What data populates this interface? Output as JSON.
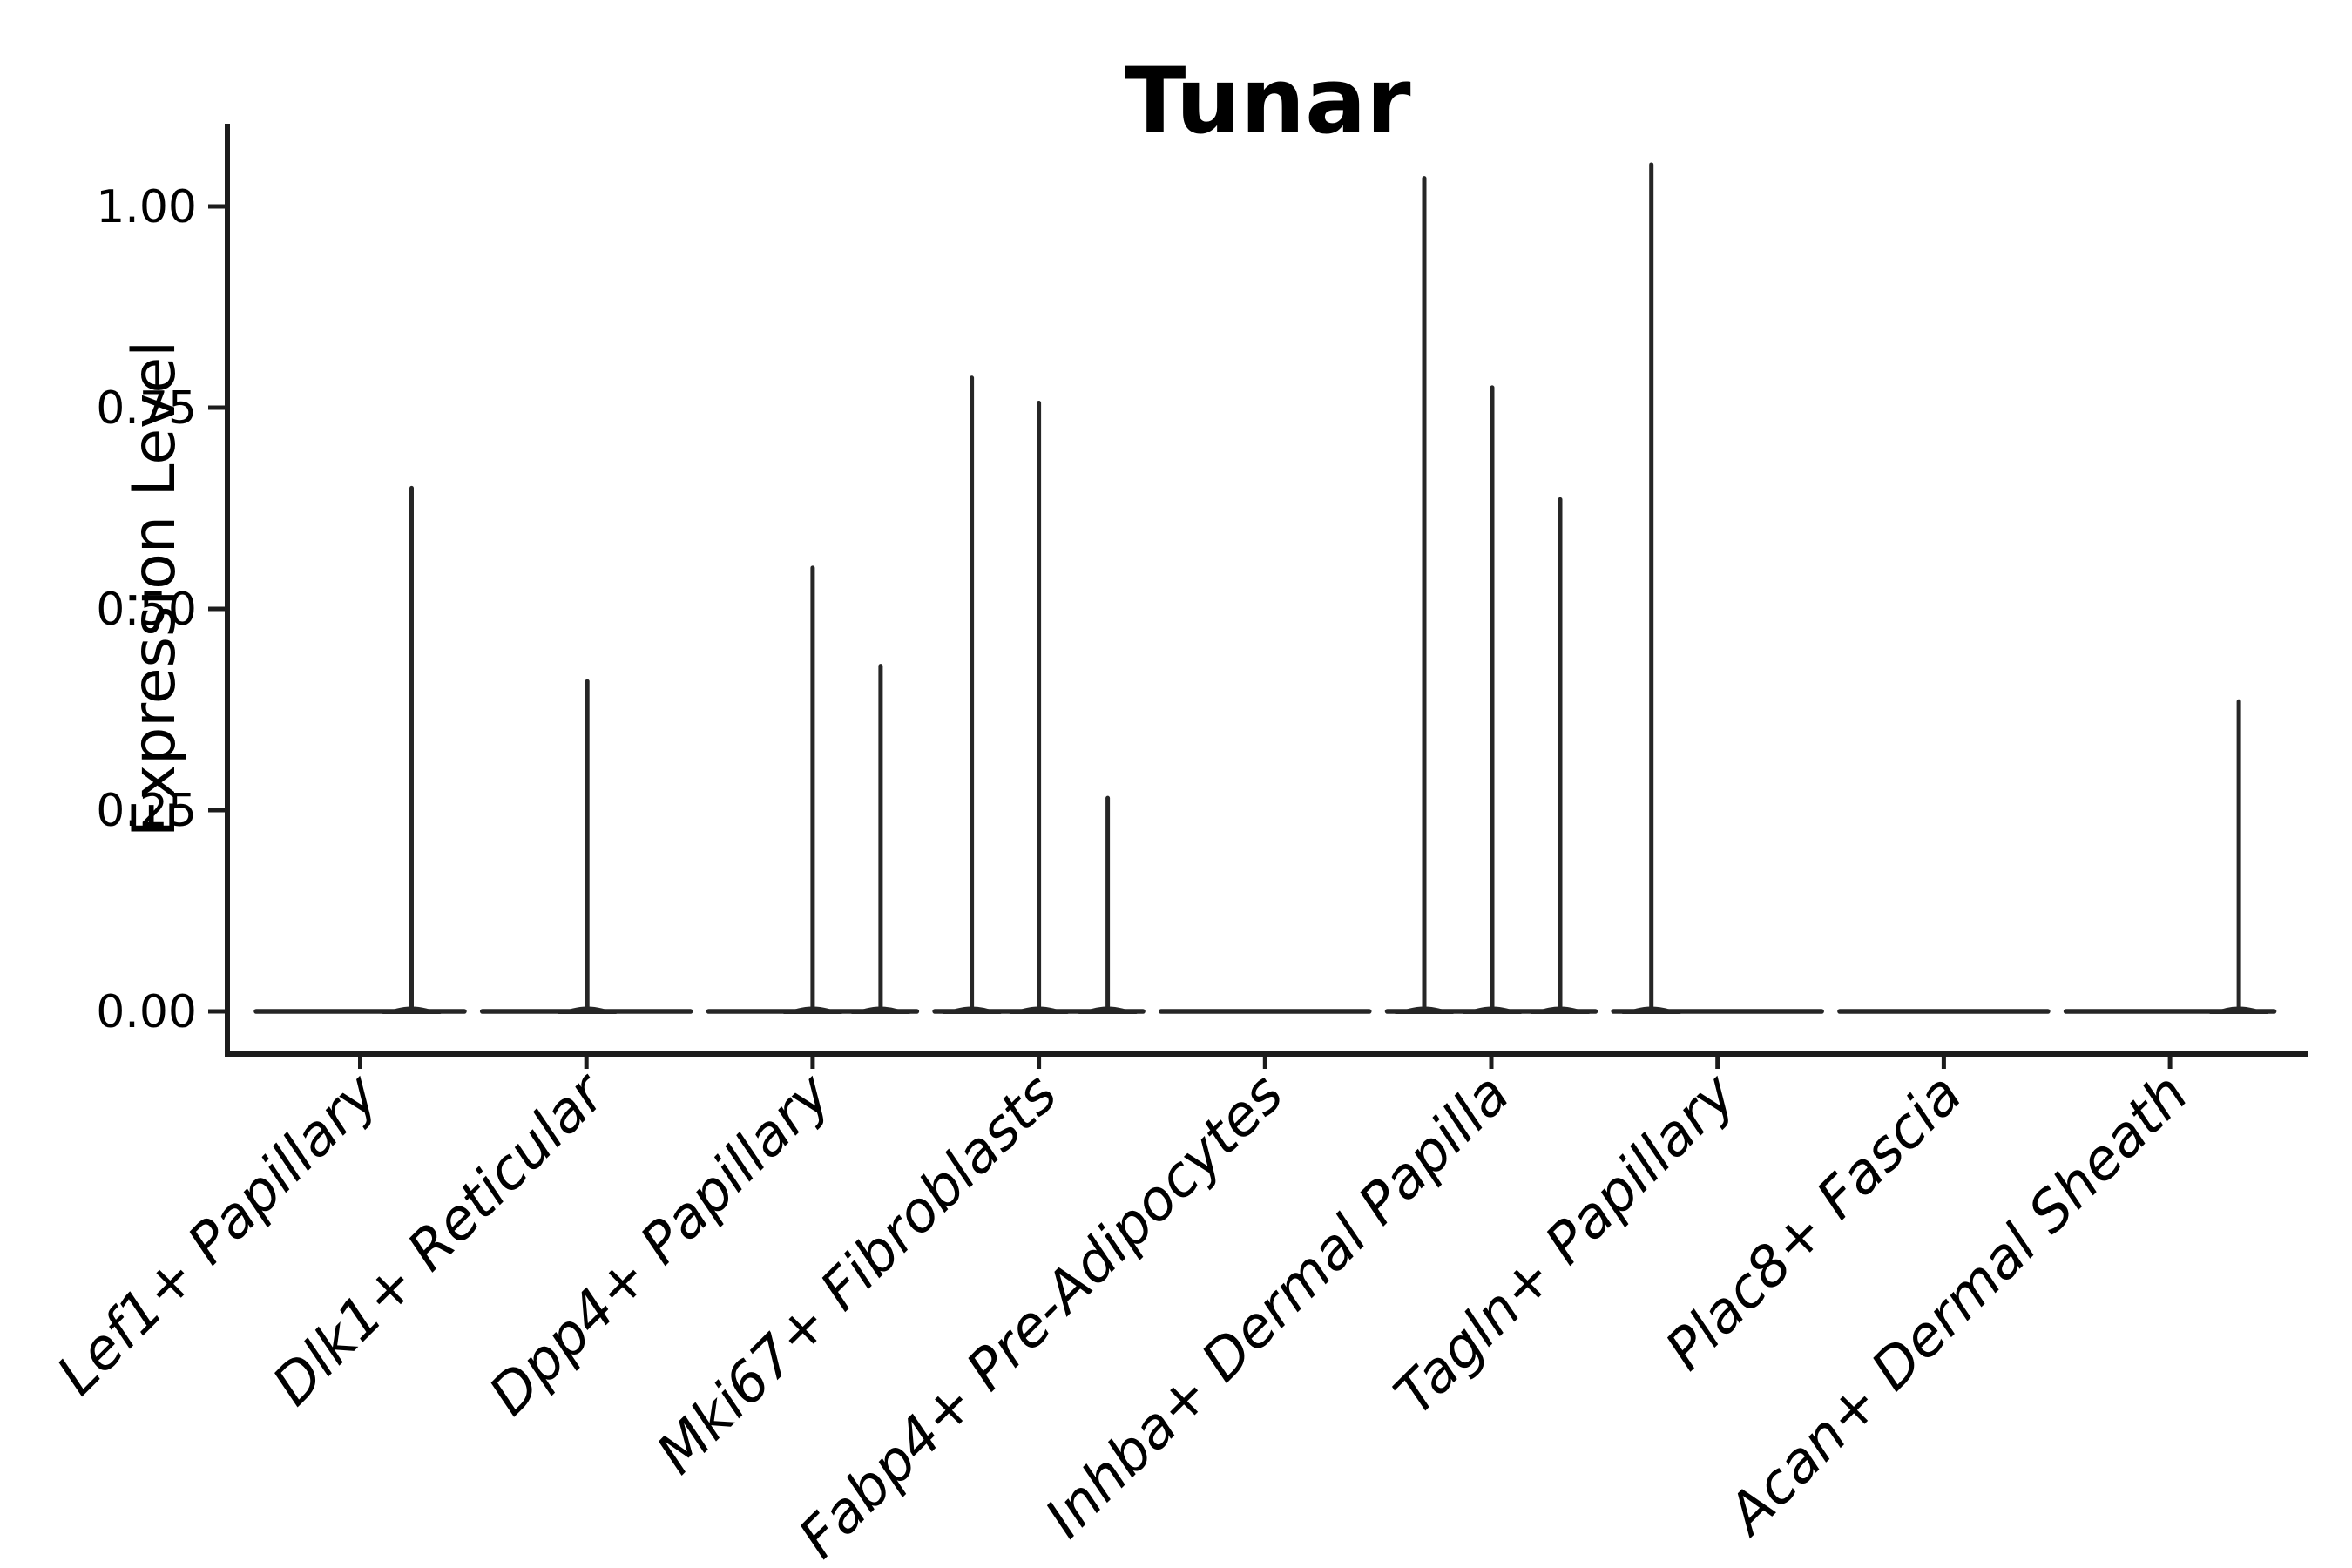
{
  "figure": {
    "title": "Tunar",
    "background": "#ffffff",
    "line_color": "#262626",
    "spine_color": "#1c1c1c",
    "text_color": "#000000"
  },
  "chart_data": {
    "type": "violin",
    "title": "Tunar",
    "xlabel": "",
    "ylabel": "Expression Level",
    "grid": false,
    "legend_position": "none",
    "ylim": [
      -0.053,
      1.103
    ],
    "ytick_values": [
      0.0,
      0.25,
      0.5,
      0.75,
      1.0
    ],
    "ytick_labels": [
      "0.00",
      "0.25",
      "0.50",
      "0.75",
      "1.00"
    ],
    "categories": [
      "Lef1+ Papillary",
      "Dlk1+ Reticular",
      "Dpp4+ Papillary",
      "Mki67+ Fibroblasts",
      "Fabp4+ Pre-Adipocytes",
      "Inhba+ Dermal Papilla",
      "Tagln+ Papillary",
      "Plac8+ Fascia",
      "Acan+ Dermal Sheath"
    ],
    "series": [
      {
        "name": "Lef1+ Papillary",
        "baseline_value": 0.0,
        "spikes": [
          {
            "offset": 59,
            "value": 0.65
          }
        ]
      },
      {
        "name": "Dlk1+ Reticular",
        "baseline_value": 0.0,
        "spikes": [
          {
            "offset": 1,
            "value": 0.41
          }
        ]
      },
      {
        "name": "Dpp4+ Papillary",
        "baseline_value": 0.0,
        "spikes": [
          {
            "offset": 0,
            "value": 0.551
          },
          {
            "offset": 78,
            "value": 0.429
          }
        ]
      },
      {
        "name": "Mki67+ Fibroblasts",
        "baseline_value": 0.0,
        "spikes": [
          {
            "offset": -77,
            "value": 0.787
          },
          {
            "offset": 0,
            "value": 0.756
          },
          {
            "offset": 79,
            "value": 0.265
          }
        ]
      },
      {
        "name": "Fabp4+ Pre-Adipocytes",
        "baseline_value": 0.0,
        "spikes": []
      },
      {
        "name": "Inhba+ Dermal Papilla",
        "baseline_value": 0.0,
        "spikes": [
          {
            "offset": -77,
            "value": 1.035
          },
          {
            "offset": 1,
            "value": 0.775
          },
          {
            "offset": 79,
            "value": 0.636
          }
        ]
      },
      {
        "name": "Tagln+ Papillary",
        "baseline_value": 0.0,
        "spikes": [
          {
            "offset": -76,
            "value": 1.052
          }
        ]
      },
      {
        "name": "Plac8+ Fascia",
        "baseline_value": 0.0,
        "spikes": []
      },
      {
        "name": "Acan+ Dermal Sheath",
        "baseline_value": 0.0,
        "spikes": [
          {
            "offset": 79,
            "value": 0.385
          }
        ]
      }
    ]
  }
}
